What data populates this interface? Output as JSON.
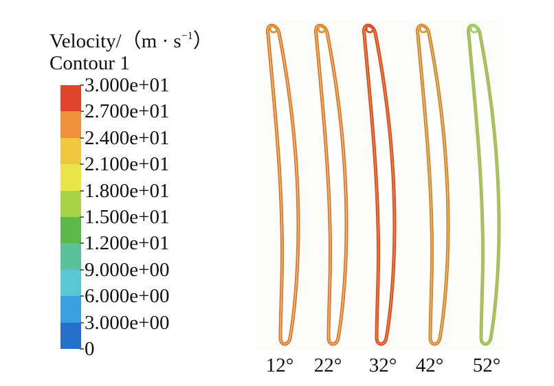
{
  "legend": {
    "title_main": "Velocity/（m · s",
    "title_exp": "−1",
    "title_close": "）",
    "subtitle": "Contour 1",
    "labels": [
      "3.000e+01",
      "2.700e+01",
      "2.400e+01",
      "2.100e+01",
      "1.800e+01",
      "1.500e+01",
      "1.200e+01",
      "9.000e+00",
      "6.000e+00",
      "3.000e+00",
      "0"
    ],
    "colors": [
      "#e0442a",
      "#f0903a",
      "#f0c840",
      "#e8e44a",
      "#a8d248",
      "#5cb848",
      "#5cc09c",
      "#5ac8d4",
      "#3aa0e0",
      "#2470c8"
    ]
  },
  "blades": [
    {
      "label": "12°",
      "outline": "#e07030",
      "inner": "#f0c060",
      "tip": "#d89838"
    },
    {
      "label": "22°",
      "outline": "#e07030",
      "inner": "#f0c060",
      "tip": "#d89838"
    },
    {
      "label": "32°",
      "outline": "#d84828",
      "inner": "#f08a30",
      "tip": "#d85530"
    },
    {
      "label": "42°",
      "outline": "#e07838",
      "inner": "#c8d050",
      "tip": "#d8a040"
    },
    {
      "label": "52°",
      "outline": "#90c860",
      "inner": "#d8b050",
      "tip": "#a0d070"
    }
  ]
}
